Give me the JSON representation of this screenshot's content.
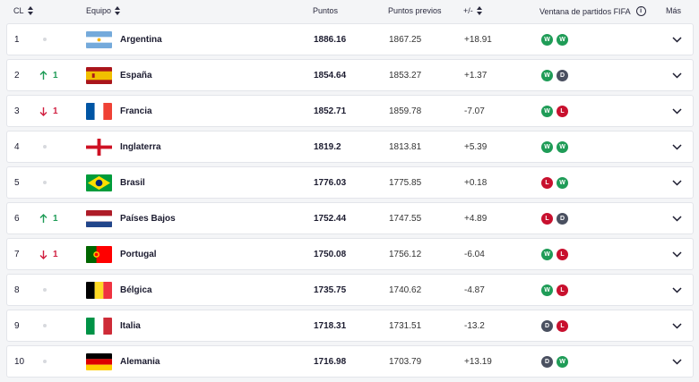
{
  "headers": {
    "rank": "CL",
    "team": "Equipo",
    "points": "Puntos",
    "previous": "Puntos previos",
    "diff": "+/-",
    "window": "Ventana de partidos FIFA",
    "more": "Más"
  },
  "rows": [
    {
      "rank": "1",
      "move": "",
      "dir": "none",
      "flag": "argentina",
      "team": "Argentina",
      "points": "1886.16",
      "previous": "1867.25",
      "diff": "+18.91",
      "results": [
        "W",
        "W"
      ]
    },
    {
      "rank": "2",
      "move": "1",
      "dir": "up",
      "flag": "spain",
      "team": "España",
      "points": "1854.64",
      "previous": "1853.27",
      "diff": "+1.37",
      "results": [
        "W",
        "D"
      ]
    },
    {
      "rank": "3",
      "move": "1",
      "dir": "down",
      "flag": "france",
      "team": "Francia",
      "points": "1852.71",
      "previous": "1859.78",
      "diff": "-7.07",
      "results": [
        "W",
        "L"
      ]
    },
    {
      "rank": "4",
      "move": "",
      "dir": "none",
      "flag": "england",
      "team": "Inglaterra",
      "points": "1819.2",
      "previous": "1813.81",
      "diff": "+5.39",
      "results": [
        "W",
        "W"
      ]
    },
    {
      "rank": "5",
      "move": "",
      "dir": "none",
      "flag": "brazil",
      "team": "Brasil",
      "points": "1776.03",
      "previous": "1775.85",
      "diff": "+0.18",
      "results": [
        "L",
        "W"
      ]
    },
    {
      "rank": "6",
      "move": "1",
      "dir": "up",
      "flag": "netherlands",
      "team": "Países Bajos",
      "points": "1752.44",
      "previous": "1747.55",
      "diff": "+4.89",
      "results": [
        "L",
        "D"
      ]
    },
    {
      "rank": "7",
      "move": "1",
      "dir": "down",
      "flag": "portugal",
      "team": "Portugal",
      "points": "1750.08",
      "previous": "1756.12",
      "diff": "-6.04",
      "results": [
        "W",
        "L"
      ]
    },
    {
      "rank": "8",
      "move": "",
      "dir": "none",
      "flag": "belgium",
      "team": "Bélgica",
      "points": "1735.75",
      "previous": "1740.62",
      "diff": "-4.87",
      "results": [
        "W",
        "L"
      ]
    },
    {
      "rank": "9",
      "move": "",
      "dir": "none",
      "flag": "italy",
      "team": "Italia",
      "points": "1718.31",
      "previous": "1731.51",
      "diff": "-13.2",
      "results": [
        "D",
        "L"
      ]
    },
    {
      "rank": "10",
      "move": "",
      "dir": "none",
      "flag": "germany",
      "team": "Alemania",
      "points": "1716.98",
      "previous": "1703.79",
      "diff": "+13.19",
      "results": [
        "D",
        "W"
      ]
    }
  ],
  "colors": {
    "up": "#1f9c57",
    "down": "#d11f40",
    "win": "#1f9c57",
    "loss": "#c8102e",
    "draw": "#4a5060"
  }
}
